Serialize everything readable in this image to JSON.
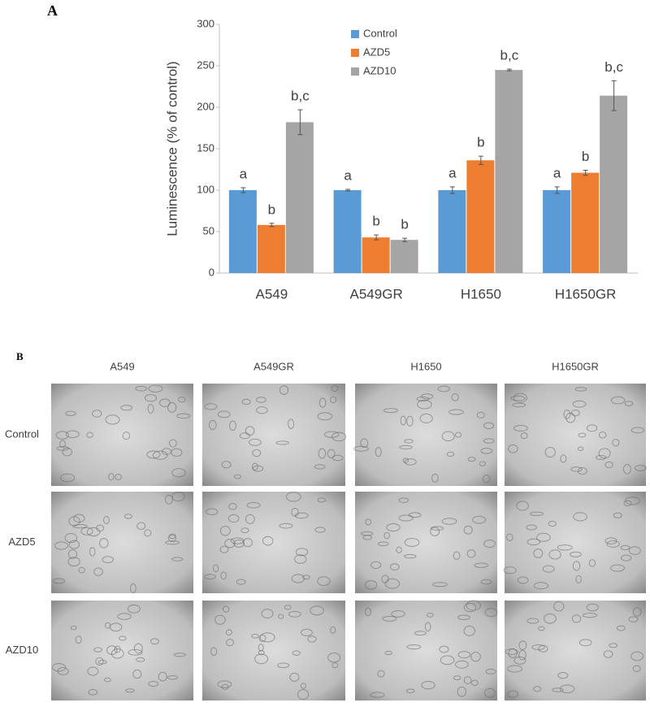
{
  "panel_a": {
    "label": "A"
  },
  "chart_data": {
    "type": "bar",
    "y_label": "Luminescence (% of control)",
    "categories": [
      "A549",
      "A549GR",
      "H1650",
      "H1650GR"
    ],
    "series": [
      {
        "name": "Control",
        "color": "#5b9bd5",
        "values": [
          100,
          100,
          100,
          100
        ],
        "errors": [
          3,
          1,
          4,
          4
        ],
        "letters": [
          "a",
          "a",
          "a",
          "a"
        ]
      },
      {
        "name": "AZD5",
        "color": "#ed7d31",
        "values": [
          58,
          43,
          136,
          121
        ],
        "errors": [
          2,
          3,
          5,
          3
        ],
        "letters": [
          "b",
          "b",
          "b",
          "b"
        ]
      },
      {
        "name": "AZD10",
        "color": "#a5a5a5",
        "values": [
          182,
          40,
          245,
          214
        ],
        "errors": [
          15,
          2,
          1,
          18
        ],
        "letters": [
          "b,c",
          "b",
          "b,c",
          "b,c"
        ]
      }
    ],
    "ylim": [
      0,
      300
    ],
    "yticks": [
      0,
      50,
      100,
      150,
      200,
      250,
      300
    ],
    "grid": false,
    "legend": "top"
  },
  "panel_b": {
    "label": "B",
    "columns": [
      "A549",
      "A549GR",
      "H1650",
      "H1650GR"
    ],
    "rows": [
      "Control",
      "AZD5",
      "AZD10"
    ]
  }
}
